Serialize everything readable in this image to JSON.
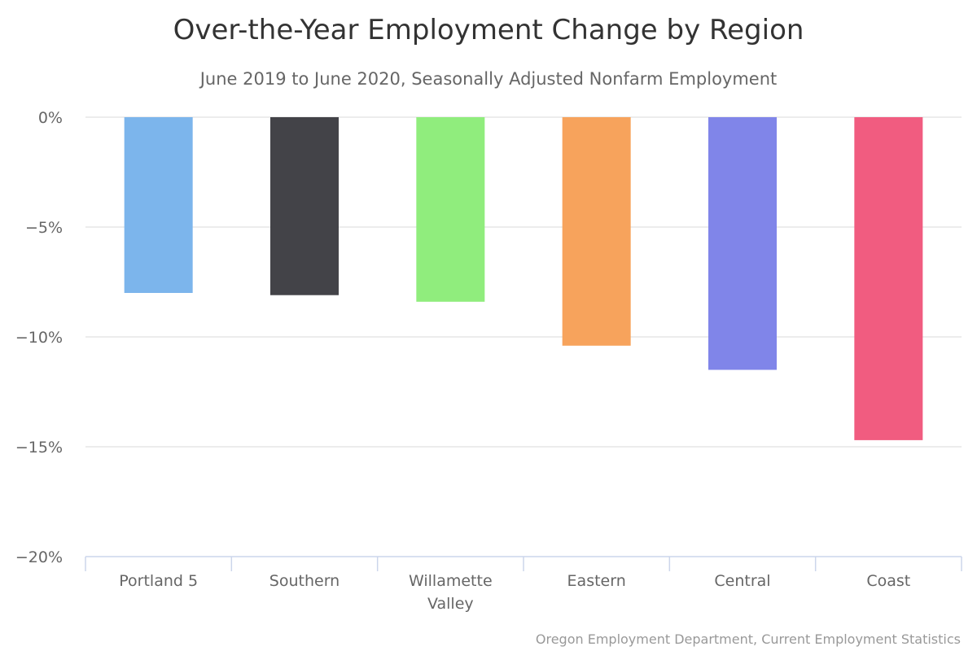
{
  "chart_data": {
    "type": "bar",
    "title": "Over-the-Year Employment Change by Region",
    "subtitle": "June 2019 to June 2020, Seasonally Adjusted Nonfarm Employment",
    "categories": [
      [
        "Portland 5"
      ],
      [
        "Southern"
      ],
      [
        "Willamette",
        "Valley"
      ],
      [
        "Eastern"
      ],
      [
        "Central"
      ],
      [
        "Coast"
      ]
    ],
    "values": [
      -8.0,
      -8.1,
      -8.4,
      -10.4,
      -11.5,
      -14.7
    ],
    "colors": [
      "#7cb5ec",
      "#434348",
      "#90ed7d",
      "#f7a35c",
      "#8085e9",
      "#f15c80"
    ],
    "xlabel": "",
    "ylabel": "",
    "ylim": [
      -20,
      0
    ],
    "yticks": [
      0,
      -5,
      -10,
      -15,
      -20
    ],
    "ytick_labels": [
      "0%",
      "−5%",
      "−10%",
      "−15%",
      "−20%"
    ],
    "grid": true,
    "legend": "none",
    "credit": "Oregon Employment Department, Current Employment Statistics"
  }
}
